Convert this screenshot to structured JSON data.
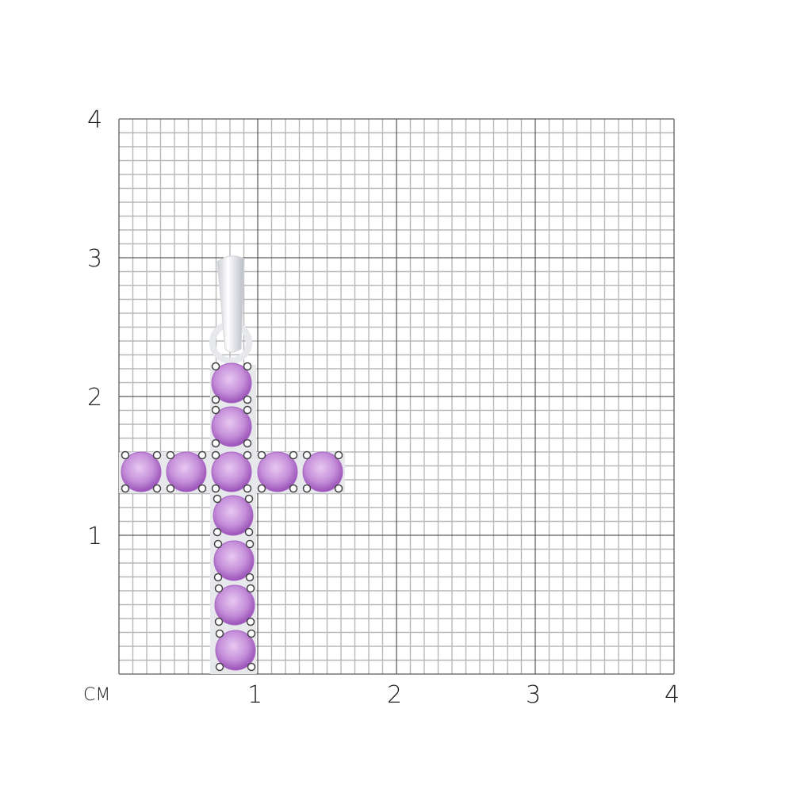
{
  "scale": {
    "unit_label": "CM",
    "y_ticks": [
      "4",
      "3",
      "2",
      "1"
    ],
    "x_ticks": [
      "1",
      "2",
      "3",
      "4"
    ],
    "range_cm": [
      0,
      4
    ],
    "minor_divisions_per_cm": 10
  },
  "product": {
    "type": "cross pendant",
    "stone_color": "#c58fd9",
    "metal_color": "#e6e8ec",
    "stones_vertical": 7,
    "stones_horizontal": 5
  }
}
